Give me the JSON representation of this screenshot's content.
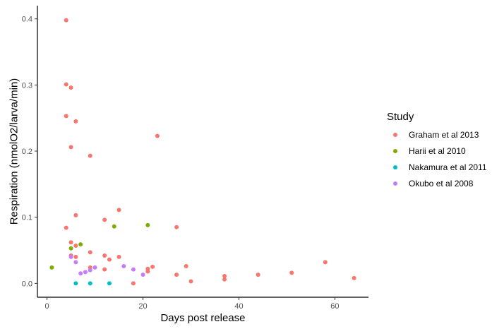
{
  "chart_data": {
    "type": "scatter",
    "xlabel": "Days post release",
    "ylabel": "Respiration (nmolO2/larva/min)",
    "xlim": [
      -2,
      67
    ],
    "ylim": [
      -0.021,
      0.42
    ],
    "x_ticks": [
      0,
      20,
      40,
      60
    ],
    "y_ticks": [
      0.0,
      0.1,
      0.2,
      0.3,
      0.4
    ],
    "x_tick_labels": [
      "0",
      "20",
      "40",
      "60"
    ],
    "y_tick_labels": [
      "0.0",
      "0.1",
      "0.2",
      "0.3",
      "0.4"
    ],
    "grid": false,
    "legend": {
      "title": "Study",
      "placement": "right"
    },
    "series": [
      {
        "name": "Graham et al 2013",
        "color": "#F8766D",
        "points": [
          [
            4,
            0.398
          ],
          [
            4,
            0.301
          ],
          [
            5,
            0.296
          ],
          [
            4,
            0.253
          ],
          [
            6,
            0.245
          ],
          [
            5,
            0.206
          ],
          [
            9,
            0.193
          ],
          [
            23,
            0.223
          ],
          [
            6,
            0.103
          ],
          [
            15,
            0.111
          ],
          [
            4,
            0.084
          ],
          [
            12,
            0.096
          ],
          [
            27,
            0.085
          ],
          [
            5,
            0.062
          ],
          [
            6,
            0.057
          ],
          [
            5,
            0.042
          ],
          [
            6,
            0.04
          ],
          [
            9,
            0.047
          ],
          [
            12,
            0.042
          ],
          [
            13,
            0.036
          ],
          [
            15,
            0.04
          ],
          [
            9,
            0.024
          ],
          [
            12,
            0.021
          ],
          [
            21,
            0.022
          ],
          [
            21,
            0.018
          ],
          [
            22,
            0.025
          ],
          [
            27,
            0.013
          ],
          [
            29,
            0.026
          ],
          [
            18,
            0.0
          ],
          [
            30,
            0.003
          ],
          [
            37,
            0.006
          ],
          [
            37,
            0.011
          ],
          [
            44,
            0.013
          ],
          [
            51,
            0.016
          ],
          [
            58,
            0.032
          ],
          [
            64,
            0.008
          ]
        ]
      },
      {
        "name": "Harii et al 2010",
        "color": "#7CAE00",
        "points": [
          [
            1,
            0.024
          ],
          [
            5,
            0.053
          ],
          [
            7,
            0.059
          ],
          [
            14,
            0.086
          ],
          [
            21,
            0.088
          ]
        ]
      },
      {
        "name": "Nakamura et al 2011",
        "color": "#00BFC4",
        "points": [
          [
            6,
            0.0
          ],
          [
            9,
            0.0
          ],
          [
            13,
            0.0
          ]
        ]
      },
      {
        "name": "Okubo et al 2008",
        "color": "#C77CFF",
        "points": [
          [
            5,
            0.04
          ],
          [
            6,
            0.032
          ],
          [
            7,
            0.015
          ],
          [
            8,
            0.017
          ],
          [
            9,
            0.02
          ],
          [
            10,
            0.024
          ],
          [
            16,
            0.026
          ],
          [
            18,
            0.021
          ],
          [
            20,
            0.013
          ]
        ]
      }
    ]
  }
}
